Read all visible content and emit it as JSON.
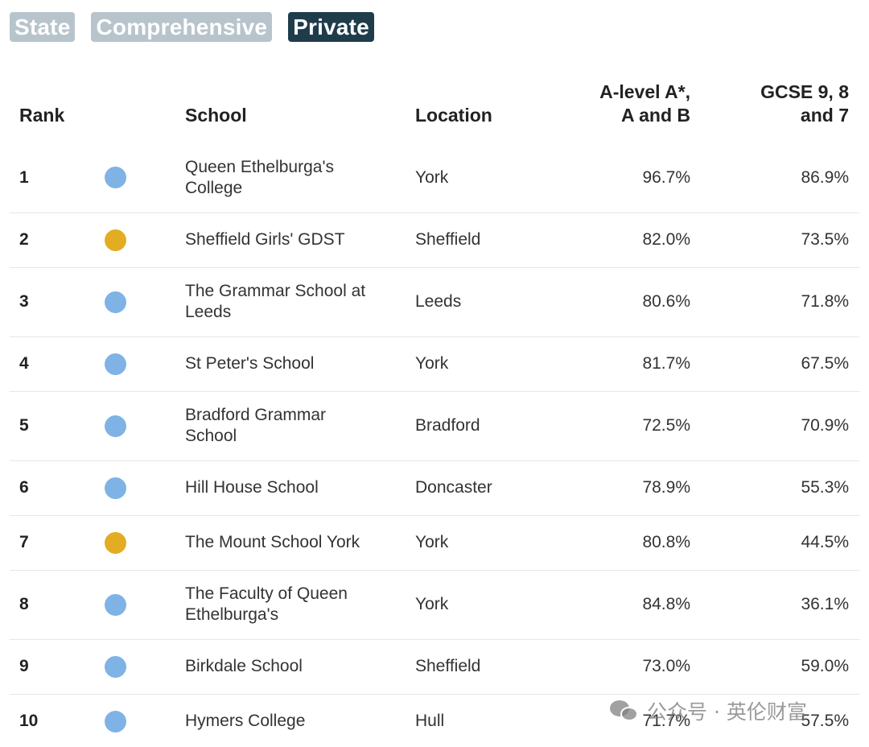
{
  "filters": [
    {
      "label": "State",
      "active": false
    },
    {
      "label": "Comprehensive",
      "active": false
    },
    {
      "label": "Private",
      "active": true
    }
  ],
  "table": {
    "headers": {
      "rank": "Rank",
      "school": "School",
      "location": "Location",
      "alevel_line1": "A-level A*,",
      "alevel_line2": "A and B",
      "gcse_line1": "GCSE 9, 8",
      "gcse_line2": "and 7"
    },
    "rows": [
      {
        "rank": "1",
        "type": "blue",
        "school_l1": "Queen Ethelburga's",
        "school_l2": "College",
        "location": "York",
        "alevel": "96.7%",
        "gcse": "86.9%"
      },
      {
        "rank": "2",
        "type": "gold",
        "school_l1": "Sheffield Girls' GDST",
        "school_l2": "",
        "location": "Sheffield",
        "alevel": "82.0%",
        "gcse": "73.5%"
      },
      {
        "rank": "3",
        "type": "blue",
        "school_l1": "The Grammar School at",
        "school_l2": "Leeds",
        "location": "Leeds",
        "alevel": "80.6%",
        "gcse": "71.8%"
      },
      {
        "rank": "4",
        "type": "blue",
        "school_l1": "St Peter's School",
        "school_l2": "",
        "location": "York",
        "alevel": "81.7%",
        "gcse": "67.5%"
      },
      {
        "rank": "5",
        "type": "blue",
        "school_l1": "Bradford Grammar",
        "school_l2": "School",
        "location": "Bradford",
        "alevel": "72.5%",
        "gcse": "70.9%"
      },
      {
        "rank": "6",
        "type": "blue",
        "school_l1": "Hill House School",
        "school_l2": "",
        "location": "Doncaster",
        "alevel": "78.9%",
        "gcse": "55.3%"
      },
      {
        "rank": "7",
        "type": "gold",
        "school_l1": "The Mount School York",
        "school_l2": "",
        "location": "York",
        "alevel": "80.8%",
        "gcse": "44.5%"
      },
      {
        "rank": "8",
        "type": "blue",
        "school_l1": "The Faculty of Queen",
        "school_l2": "Ethelburga's",
        "location": "York",
        "alevel": "84.8%",
        "gcse": "36.1%"
      },
      {
        "rank": "9",
        "type": "blue",
        "school_l1": "Birkdale School",
        "school_l2": "",
        "location": "Sheffield",
        "alevel": "73.0%",
        "gcse": "59.0%"
      },
      {
        "rank": "10",
        "type": "blue",
        "school_l1": "Hymers College",
        "school_l2": "",
        "location": "Hull",
        "alevel": "71.7%",
        "gcse": "57.5%"
      }
    ]
  },
  "watermark": {
    "text": "公众号 · 英伦财富",
    "icon": "wechat-icon"
  },
  "colors": {
    "blue_dot": "#7fb3e6",
    "gold_dot": "#e2ad22",
    "active_filter": "#1f3c4b",
    "inactive_filter": "#b8c4cb"
  }
}
